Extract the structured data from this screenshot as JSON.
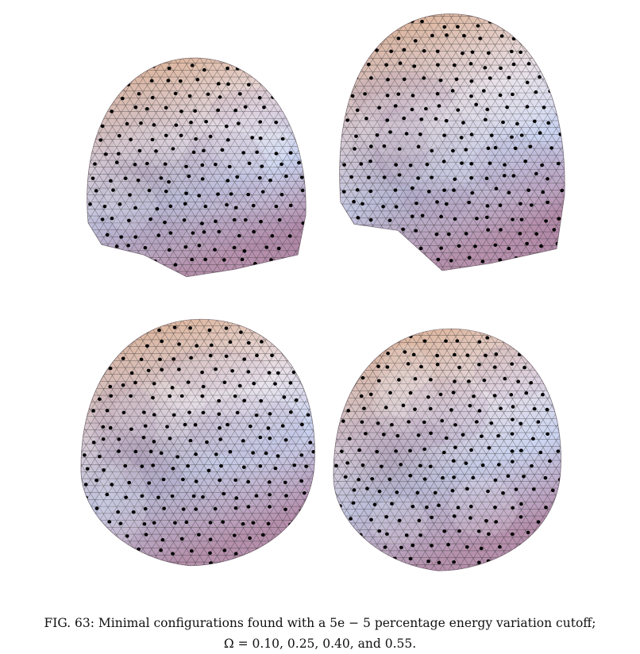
{
  "figure": {
    "panels": [
      {
        "omega": "0.10"
      },
      {
        "omega": "0.25"
      },
      {
        "omega": "0.40"
      },
      {
        "omega": "0.55"
      }
    ],
    "colors": {
      "top": "#d9a27a",
      "cool": "#c9d3f0",
      "bottom": "#b28aa8",
      "mesh": "#2a2a2a",
      "particle": "#000000"
    }
  },
  "caption": {
    "line1": "FIG. 63: Minimal configurations found with a 5e − 5 percentage energy variation cutoff;",
    "line2": "Ω = 0.10, 0.25, 0.40, and 0.55."
  }
}
